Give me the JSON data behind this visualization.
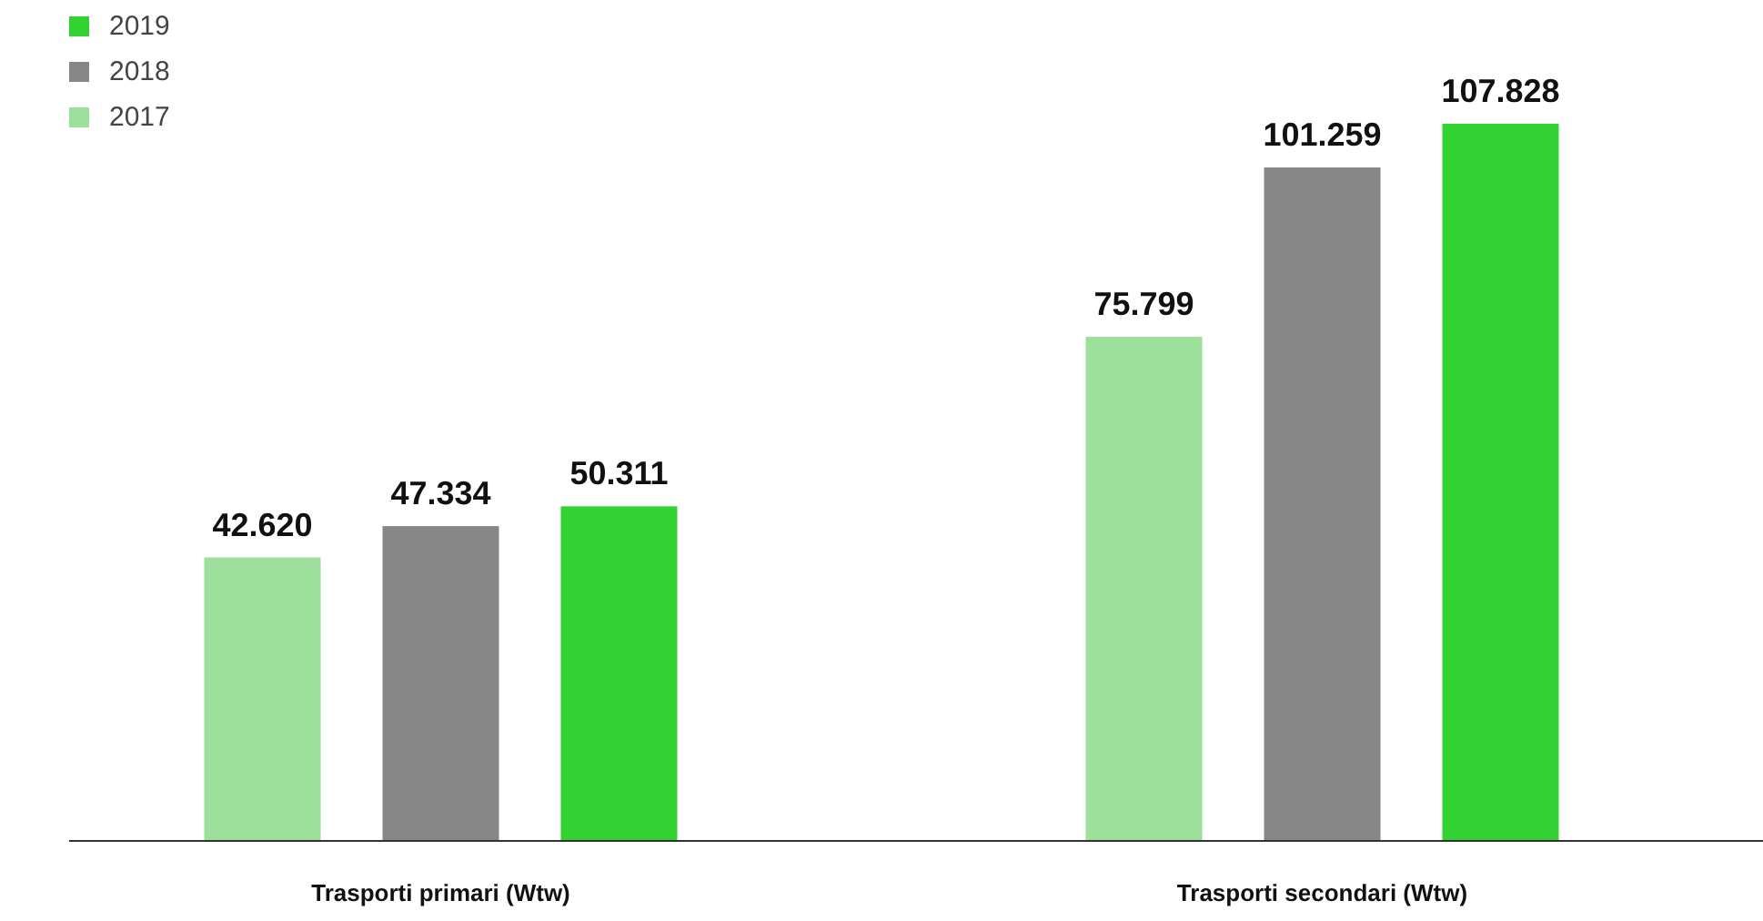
{
  "chart_data": {
    "type": "bar",
    "categories": [
      "Trasporti primari (Wtw)",
      "Trasporti secondari (Wtw)"
    ],
    "series": [
      {
        "name": "2017",
        "color": "#9de09b",
        "values": [
          42620,
          75799
        ],
        "value_labels": [
          "42.620",
          "75.799"
        ]
      },
      {
        "name": "2018",
        "color": "#878787",
        "values": [
          47334,
          101259
        ],
        "value_labels": [
          "47.334",
          "101.259"
        ]
      },
      {
        "name": "2019",
        "color": "#33d233",
        "values": [
          50311,
          107828
        ],
        "value_labels": [
          "50.311",
          "107.828"
        ]
      }
    ],
    "legend": "top left",
    "grid": false
  }
}
